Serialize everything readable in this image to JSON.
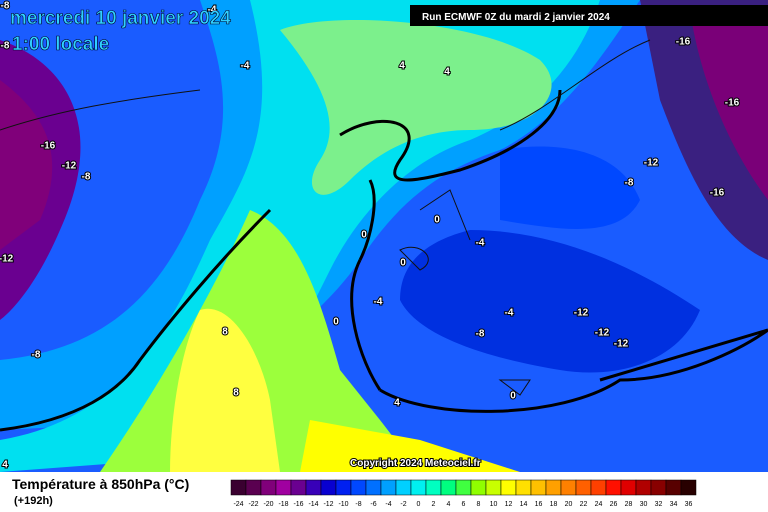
{
  "header": {
    "date": "mercredi 10 janvier 2024",
    "time": "1:00 locale",
    "run": "Run ECMWF 0Z du mardi 2 janvier 2024",
    "copyright": "Copyright 2024 Meteociel.fr"
  },
  "legend": {
    "title": "Température à 850hPa (°C)",
    "lead": "(+192h)",
    "levels": [
      -24,
      -22,
      -20,
      -18,
      -16,
      -14,
      -12,
      -10,
      -8,
      -6,
      -4,
      -2,
      0,
      2,
      4,
      6,
      8,
      10,
      12,
      14,
      16,
      18,
      20,
      22,
      24,
      26,
      28,
      30,
      32,
      34,
      36
    ],
    "colors": [
      "#3a0030",
      "#5a0050",
      "#80007a",
      "#a000a0",
      "#6a0090",
      "#3800b8",
      "#0800d0",
      "#0020f0",
      "#0048ff",
      "#0070ff",
      "#00a0ff",
      "#00d0ff",
      "#00f0f0",
      "#00ffc0",
      "#00ff80",
      "#40ff40",
      "#90ff00",
      "#c8ff00",
      "#ffff00",
      "#ffe000",
      "#ffc000",
      "#ffa000",
      "#ff8000",
      "#ff6000",
      "#ff4000",
      "#ff1000",
      "#e00000",
      "#b00000",
      "#880000",
      "#580000",
      "#280000"
    ]
  },
  "contour_labels": [
    -8,
    -4,
    -8,
    -4,
    4,
    4,
    -16,
    -16,
    -16,
    -12,
    -8,
    -16,
    -12,
    -8,
    -12,
    -8,
    0,
    0,
    0,
    -4,
    -4,
    0,
    -4,
    -12,
    -8,
    -12,
    -12,
    8,
    8,
    4,
    0,
    4
  ]
}
